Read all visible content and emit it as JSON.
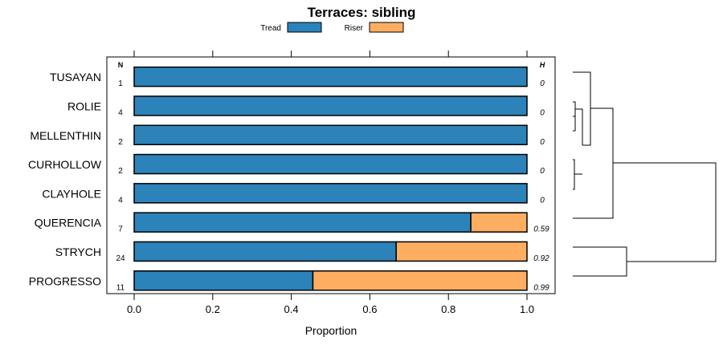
{
  "chart_data": {
    "type": "bar",
    "orientation": "horizontal",
    "stacked": true,
    "title": "Terraces: sibling",
    "xlabel": "Proportion",
    "ylabel": "",
    "xlim": [
      0,
      1
    ],
    "xticks": [
      0,
      0.2,
      0.4,
      0.6,
      0.8,
      1
    ],
    "xtick_labels": [
      "0.0",
      "0.2",
      "0.4",
      "0.6",
      "0.8",
      "1.0"
    ],
    "n_header": "N",
    "h_header": "H",
    "categories": [
      "TUSAYAN",
      "ROLIE",
      "MELLENTHIN",
      "CURHOLLOW",
      "CLAYHOLE",
      "QUERENCIA",
      "STRYCH",
      "PROGRESSO"
    ],
    "n_values": [
      "1",
      "4",
      "2",
      "2",
      "4",
      "7",
      "24",
      "11"
    ],
    "h_values": [
      "0",
      "0",
      "0",
      "0",
      "0",
      "0.59",
      "0.92",
      "0.99"
    ],
    "series": [
      {
        "name": "Tread",
        "color": "#2b83ba",
        "values": [
          1,
          1,
          1,
          1,
          1,
          0.857,
          0.667,
          0.455
        ]
      },
      {
        "name": "Riser",
        "color": "#fdae61",
        "values": [
          0,
          0,
          0,
          0,
          0,
          0.143,
          0.333,
          0.545
        ]
      }
    ],
    "legend": "top"
  }
}
